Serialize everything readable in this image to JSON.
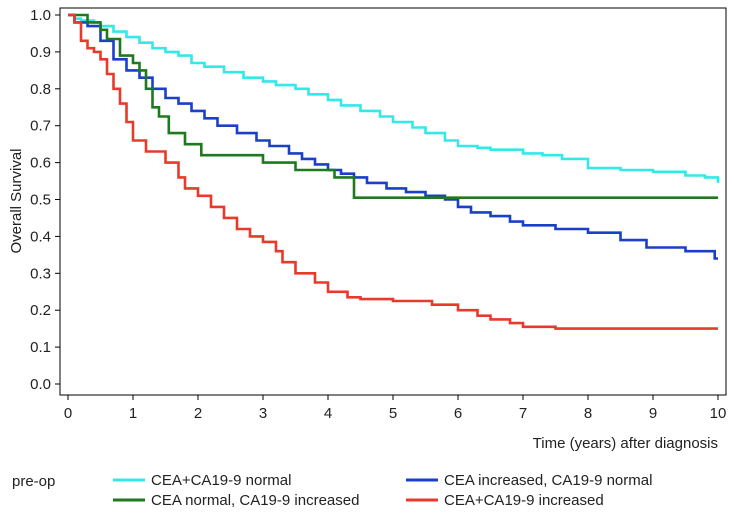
{
  "chart_data": {
    "type": "line",
    "step": true,
    "title": "",
    "xlabel": "Time (years) after diagnosis",
    "ylabel": "Overall Survival",
    "xlim": [
      0,
      10
    ],
    "ylim": [
      0,
      1
    ],
    "xticks": [
      "0",
      "1",
      "2",
      "3",
      "4",
      "5",
      "6",
      "7",
      "8",
      "9",
      "10"
    ],
    "yticks": [
      "0.0",
      "0.1",
      "0.2",
      "0.3",
      "0.4",
      "0.5",
      "0.6",
      "0.7",
      "0.8",
      "0.9",
      "1.0"
    ],
    "legend_title": "pre-op",
    "legend_position": "bottom",
    "series": [
      {
        "name": "CEA+CA19-9 normal",
        "color": "#33e8e8",
        "x": [
          0,
          0.1,
          0.2,
          0.4,
          0.5,
          0.7,
          0.9,
          1.1,
          1.3,
          1.5,
          1.7,
          1.9,
          2.1,
          2.4,
          2.7,
          3.0,
          3.2,
          3.5,
          3.7,
          4.0,
          4.2,
          4.5,
          4.8,
          5.0,
          5.3,
          5.5,
          5.8,
          6.0,
          6.3,
          6.5,
          7.0,
          7.3,
          7.6,
          8.0,
          8.5,
          9.0,
          9.5,
          9.8,
          10.0
        ],
        "values": [
          1.0,
          0.99,
          0.985,
          0.98,
          0.97,
          0.955,
          0.94,
          0.925,
          0.91,
          0.9,
          0.89,
          0.87,
          0.86,
          0.845,
          0.83,
          0.82,
          0.81,
          0.8,
          0.785,
          0.77,
          0.755,
          0.74,
          0.725,
          0.71,
          0.695,
          0.68,
          0.66,
          0.645,
          0.64,
          0.635,
          0.625,
          0.62,
          0.61,
          0.585,
          0.58,
          0.575,
          0.565,
          0.56,
          0.545
        ]
      },
      {
        "name": "CEA increased, CA19-9 normal",
        "color": "#1a3fc9",
        "x": [
          0,
          0.1,
          0.3,
          0.5,
          0.7,
          0.9,
          1.1,
          1.3,
          1.5,
          1.7,
          1.9,
          2.1,
          2.3,
          2.6,
          2.9,
          3.1,
          3.4,
          3.6,
          3.8,
          4.0,
          4.2,
          4.4,
          4.6,
          4.9,
          5.2,
          5.5,
          5.8,
          6.0,
          6.2,
          6.5,
          6.8,
          7.0,
          7.5,
          8.0,
          8.5,
          8.9,
          9.5,
          9.8,
          9.95,
          10.0
        ],
        "values": [
          1.0,
          0.98,
          0.97,
          0.93,
          0.88,
          0.85,
          0.83,
          0.8,
          0.775,
          0.76,
          0.74,
          0.72,
          0.7,
          0.68,
          0.66,
          0.645,
          0.625,
          0.61,
          0.595,
          0.58,
          0.57,
          0.56,
          0.545,
          0.53,
          0.52,
          0.51,
          0.5,
          0.48,
          0.465,
          0.455,
          0.44,
          0.43,
          0.42,
          0.41,
          0.39,
          0.37,
          0.36,
          0.36,
          0.34,
          0.34
        ]
      },
      {
        "name": "CEA normal, CA19-9 increased",
        "color": "#1e7a1e",
        "x": [
          0,
          0.3,
          0.5,
          0.6,
          0.8,
          1.0,
          1.1,
          1.2,
          1.3,
          1.4,
          1.55,
          1.8,
          2.05,
          2.5,
          3.0,
          3.5,
          4.1,
          4.4,
          5.0,
          6.0,
          7.0,
          8.0,
          9.0,
          10.0
        ],
        "values": [
          1.0,
          0.98,
          0.96,
          0.935,
          0.89,
          0.87,
          0.85,
          0.8,
          0.75,
          0.725,
          0.68,
          0.65,
          0.62,
          0.62,
          0.6,
          0.58,
          0.56,
          0.505,
          0.505,
          0.505,
          0.505,
          0.505,
          0.505,
          0.505
        ]
      },
      {
        "name": "CEA+CA19-9 increased",
        "color": "#e83a2a",
        "x": [
          0,
          0.1,
          0.2,
          0.3,
          0.4,
          0.5,
          0.6,
          0.7,
          0.8,
          0.9,
          1.0,
          1.2,
          1.5,
          1.7,
          1.8,
          2.0,
          2.2,
          2.4,
          2.6,
          2.8,
          3.0,
          3.2,
          3.3,
          3.5,
          3.8,
          4.0,
          4.3,
          4.5,
          5.0,
          5.6,
          6.0,
          6.3,
          6.5,
          6.8,
          7.0,
          7.5,
          8.0,
          9.0,
          10.0
        ],
        "values": [
          1.0,
          0.98,
          0.93,
          0.91,
          0.9,
          0.88,
          0.84,
          0.8,
          0.76,
          0.71,
          0.66,
          0.63,
          0.6,
          0.56,
          0.53,
          0.51,
          0.48,
          0.45,
          0.42,
          0.4,
          0.385,
          0.36,
          0.33,
          0.3,
          0.275,
          0.25,
          0.235,
          0.23,
          0.225,
          0.215,
          0.2,
          0.185,
          0.175,
          0.165,
          0.155,
          0.15,
          0.15,
          0.15,
          0.15
        ]
      }
    ]
  }
}
